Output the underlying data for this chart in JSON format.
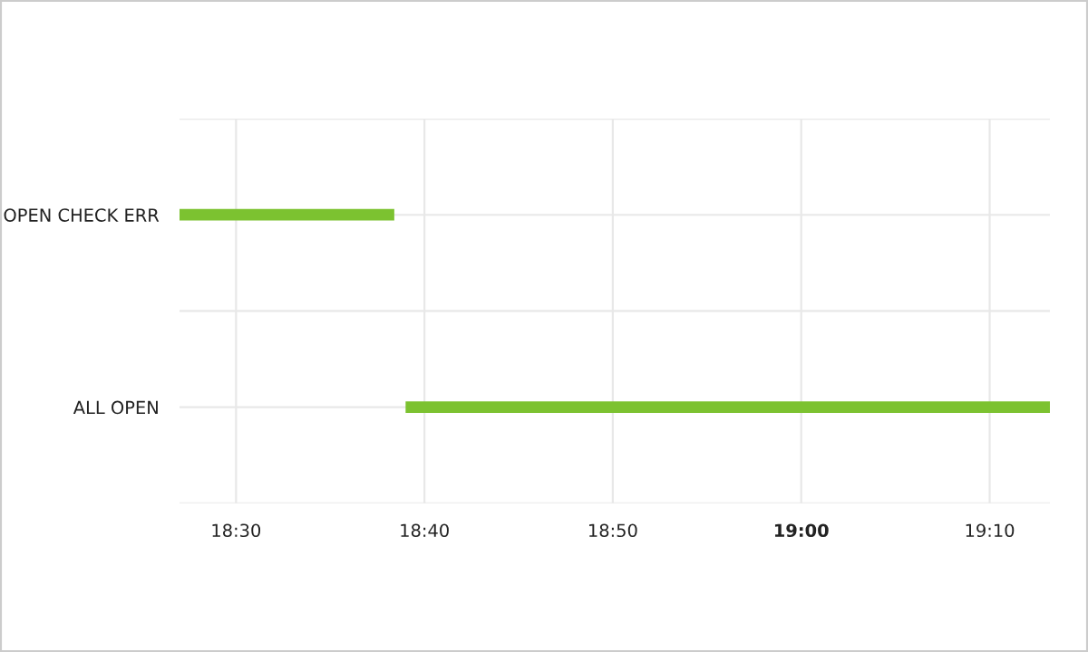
{
  "chart_data": {
    "type": "bar",
    "orientation": "horizontal",
    "categories": [
      "OPEN CHECK ERR",
      "ALL OPEN"
    ],
    "base": [
      18.45,
      18.65
    ],
    "values": [
      0.19,
      0.57
    ],
    "color": "#7cc230",
    "xlim": [
      18.45,
      19.22
    ],
    "xticks": [
      {
        "value": 18.5,
        "label": "18:30"
      },
      {
        "value": 18.6667,
        "label": "18:40"
      },
      {
        "value": 18.8333,
        "label": "18:50"
      },
      {
        "value": 19.0,
        "label": "19:00"
      },
      {
        "value": 19.1667,
        "label": "19:10"
      }
    ],
    "grid": true
  }
}
